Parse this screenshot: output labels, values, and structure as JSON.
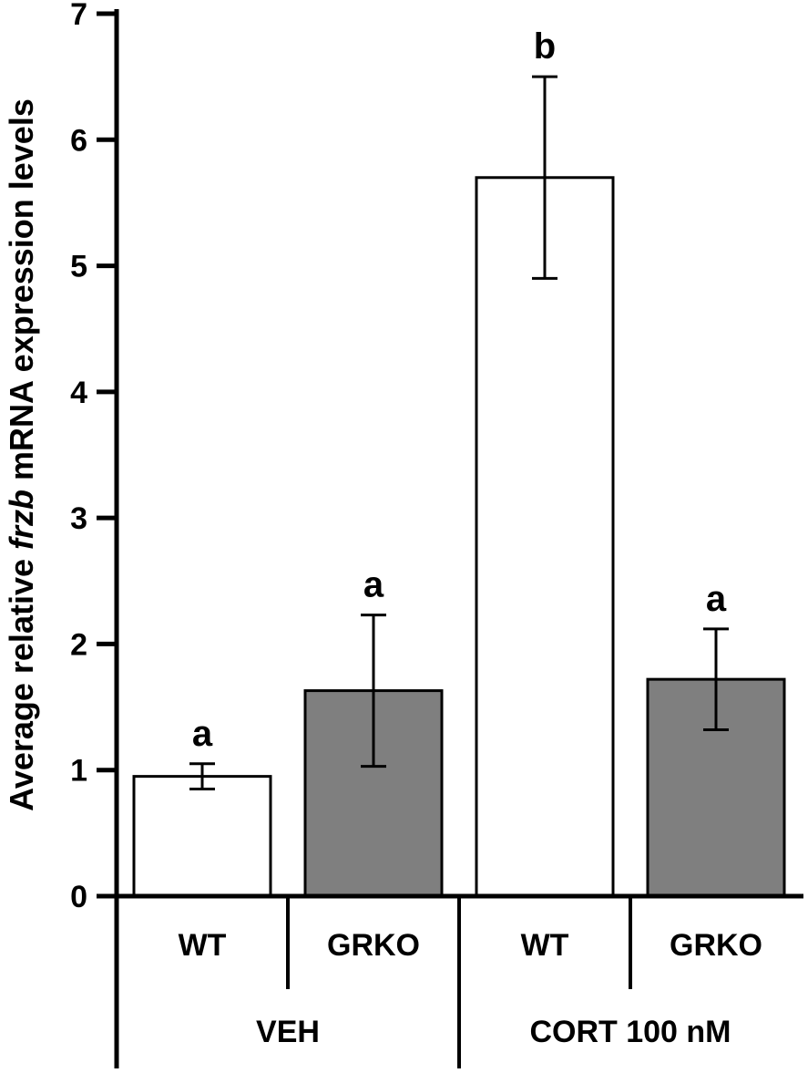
{
  "chart_data": {
    "type": "bar",
    "title": "",
    "categories": [
      "WT",
      "GRKO",
      "WT",
      "GRKO"
    ],
    "values": [
      0.95,
      1.63,
      5.7,
      1.72
    ],
    "errors": [
      0.1,
      0.6,
      0.8,
      0.4
    ],
    "significance_letters": [
      "a",
      "a",
      "b",
      "a"
    ],
    "bar_fills": [
      "#ffffff",
      "#7f7f7f",
      "#ffffff",
      "#7f7f7f"
    ],
    "bar_border_color": "#000000",
    "group_labels": [
      "VEH",
      "CORT 100 nM"
    ],
    "bars_per_group": 2,
    "ylabel": "Average relative frzb mRNA expression levels",
    "ylabel_parts": [
      {
        "text": "Average relative ",
        "italic": false
      },
      {
        "text": "frzb",
        "italic": true
      },
      {
        "text": " mRNA expression levels",
        "italic": false
      }
    ],
    "xlabel": "",
    "ylim": [
      0,
      7
    ],
    "ytick_interval": 1,
    "ytick_labels": [
      "0",
      "1",
      "2",
      "3",
      "4",
      "5",
      "6",
      "7"
    ],
    "grid": false,
    "legend": false,
    "axis_color": "#000000",
    "error_bar_color": "#000000"
  }
}
